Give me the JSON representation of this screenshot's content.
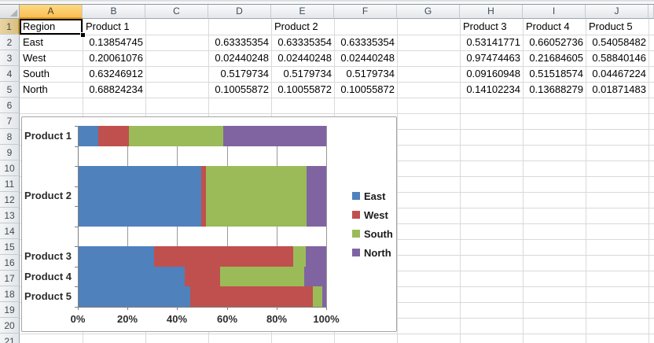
{
  "app": {
    "name": "spreadsheet-grid"
  },
  "colors": {
    "grid_line": "#D9D9D9",
    "selected_header_fill": "#FABE54",
    "series_east": "#4F81BD",
    "series_west": "#C0504D",
    "series_south": "#9BBB59",
    "series_north": "#8064A2"
  },
  "sheet": {
    "selected_cell": "A1",
    "selected_column": "A",
    "selected_row": "1",
    "column_headers": [
      "A",
      "B",
      "C",
      "D",
      "E",
      "F",
      "G",
      "H",
      "I",
      "J"
    ],
    "row_headers": [
      "1",
      "2",
      "3",
      "4",
      "5",
      "6",
      "7",
      "8",
      "9",
      "10",
      "11",
      "12",
      "13",
      "14",
      "15",
      "16",
      "17",
      "18",
      "19",
      "20",
      "21"
    ],
    "cells": [
      {
        "ref": "A1",
        "text": "Region",
        "align": "left"
      },
      {
        "ref": "B1",
        "text": "Product 1",
        "align": "left"
      },
      {
        "ref": "E1",
        "text": "Product 2",
        "align": "left"
      },
      {
        "ref": "H1",
        "text": "Product 3",
        "align": "left"
      },
      {
        "ref": "I1",
        "text": "Product 4",
        "align": "left"
      },
      {
        "ref": "J1",
        "text": "Product 5",
        "align": "left"
      },
      {
        "ref": "A2",
        "text": "East",
        "align": "left"
      },
      {
        "ref": "B2",
        "text": "0.13854745",
        "align": "right"
      },
      {
        "ref": "D2",
        "text": "0.63335354",
        "align": "right"
      },
      {
        "ref": "E2",
        "text": "0.63335354",
        "align": "right"
      },
      {
        "ref": "F2",
        "text": "0.63335354",
        "align": "right"
      },
      {
        "ref": "H2",
        "text": "0.53141771",
        "align": "right"
      },
      {
        "ref": "I2",
        "text": "0.66052736",
        "align": "right"
      },
      {
        "ref": "J2",
        "text": "0.54058482",
        "align": "right"
      },
      {
        "ref": "A3",
        "text": "West",
        "align": "left"
      },
      {
        "ref": "B3",
        "text": "0.20061076",
        "align": "right"
      },
      {
        "ref": "D3",
        "text": "0.02440248",
        "align": "right"
      },
      {
        "ref": "E3",
        "text": "0.02440248",
        "align": "right"
      },
      {
        "ref": "F3",
        "text": "0.02440248",
        "align": "right"
      },
      {
        "ref": "H3",
        "text": "0.97474463",
        "align": "right"
      },
      {
        "ref": "I3",
        "text": "0.21684605",
        "align": "right"
      },
      {
        "ref": "J3",
        "text": "0.58840146",
        "align": "right"
      },
      {
        "ref": "A4",
        "text": "South",
        "align": "left"
      },
      {
        "ref": "B4",
        "text": "0.63246912",
        "align": "right"
      },
      {
        "ref": "D4",
        "text": "0.5179734",
        "align": "right"
      },
      {
        "ref": "E4",
        "text": "0.5179734",
        "align": "right"
      },
      {
        "ref": "F4",
        "text": "0.5179734",
        "align": "right"
      },
      {
        "ref": "H4",
        "text": "0.09160948",
        "align": "right"
      },
      {
        "ref": "I4",
        "text": "0.51518574",
        "align": "right"
      },
      {
        "ref": "J4",
        "text": "0.04467224",
        "align": "right"
      },
      {
        "ref": "A5",
        "text": "North",
        "align": "left"
      },
      {
        "ref": "B5",
        "text": "0.68824234",
        "align": "right"
      },
      {
        "ref": "D5",
        "text": "0.10055872",
        "align": "right"
      },
      {
        "ref": "E5",
        "text": "0.10055872",
        "align": "right"
      },
      {
        "ref": "F5",
        "text": "0.10055872",
        "align": "right"
      },
      {
        "ref": "H5",
        "text": "0.14102234",
        "align": "right"
      },
      {
        "ref": "I5",
        "text": "0.13688279",
        "align": "right"
      },
      {
        "ref": "J5",
        "text": "0.01871483",
        "align": "right"
      }
    ]
  },
  "chart_data": {
    "type": "bar",
    "subtype": "horizontal-100pct-stacked",
    "title": "",
    "xlabel": "",
    "ylabel": "",
    "x_axis": {
      "ticks": [
        "0%",
        "20%",
        "40%",
        "60%",
        "80%",
        "100%"
      ],
      "range": [
        0,
        1
      ],
      "grid": true
    },
    "legend": {
      "position": "right",
      "entries": [
        "East",
        "West",
        "South",
        "North"
      ]
    },
    "categories_display": [
      "Product 1",
      "Product 2",
      "Product 3",
      "Product 4",
      "Product 5"
    ],
    "plot_bands": [
      {
        "label": "Product 1",
        "product": "Product 1"
      },
      {
        "label": "",
        "product": ""
      },
      {
        "label": "",
        "product": "Product 2"
      },
      {
        "label": "Product 2",
        "product": "Product 2"
      },
      {
        "label": "",
        "product": "Product 2"
      },
      {
        "label": "",
        "product": ""
      },
      {
        "label": "Product 3",
        "product": "Product 3"
      },
      {
        "label": "Product 4",
        "product": "Product 4"
      },
      {
        "label": "Product 5",
        "product": "Product 5"
      }
    ],
    "category_label_positions": [
      {
        "text": "Product 1",
        "band_center": 0.5
      },
      {
        "text": "Product 2",
        "band_center": 3.5
      },
      {
        "text": "Product 3",
        "band_center": 6.5
      },
      {
        "text": "Product 4",
        "band_center": 7.5
      },
      {
        "text": "Product 5",
        "band_center": 8.5
      }
    ],
    "series": [
      {
        "name": "East",
        "color": "#4F81BD",
        "values": {
          "Product 1": 0.13854745,
          "Product 2": 0.63335354,
          "Product 3": 0.53141771,
          "Product 4": 0.66052736,
          "Product 5": 0.54058482
        }
      },
      {
        "name": "West",
        "color": "#C0504D",
        "values": {
          "Product 1": 0.20061076,
          "Product 2": 0.02440248,
          "Product 3": 0.97474463,
          "Product 4": 0.21684605,
          "Product 5": 0.58840146
        }
      },
      {
        "name": "South",
        "color": "#9BBB59",
        "values": {
          "Product 1": 0.63246912,
          "Product 2": 0.5179734,
          "Product 3": 0.09160948,
          "Product 4": 0.51518574,
          "Product 5": 0.04467224
        }
      },
      {
        "name": "North",
        "color": "#8064A2",
        "values": {
          "Product 1": 0.68824234,
          "Product 2": 0.10055872,
          "Product 3": 0.14102234,
          "Product 4": 0.13688279,
          "Product 5": 0.01871483
        }
      }
    ],
    "note": "values are plotted as percent of each product's row total (100% stacked)"
  }
}
